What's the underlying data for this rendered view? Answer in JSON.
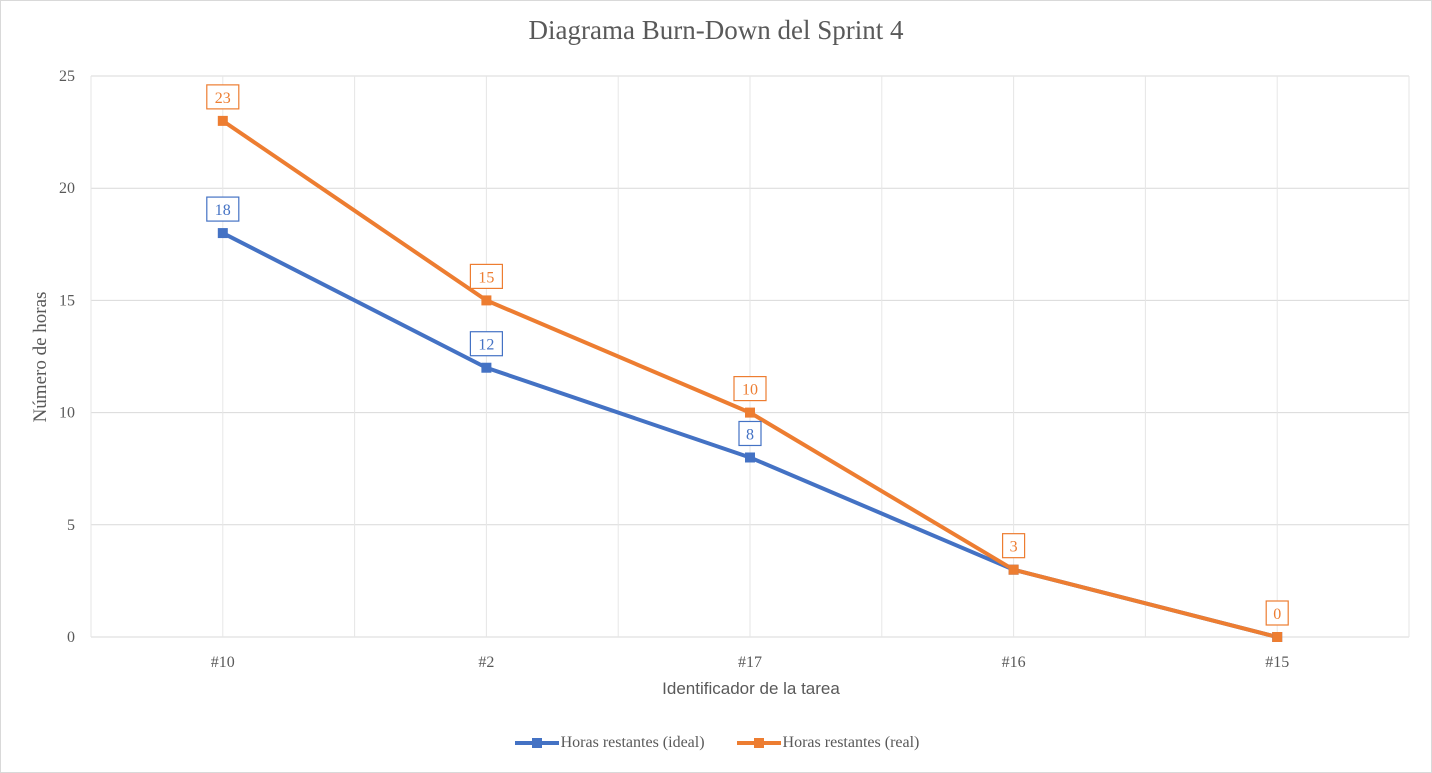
{
  "chart_data": {
    "type": "line",
    "title": "Diagrama Burn-Down del Sprint 4",
    "xlabel": "Identificador de la tarea",
    "ylabel": "Número de horas",
    "categories": [
      "#10",
      "#2",
      "#17",
      "#16",
      "#15"
    ],
    "ylim": [
      0,
      25
    ],
    "yticks": [
      0,
      5,
      10,
      15,
      20,
      25
    ],
    "grid": true,
    "legend": "bottom",
    "series": [
      {
        "name": "Horas restantes (ideal)",
        "values": [
          18,
          12,
          8,
          3,
          0
        ],
        "color": "#4472c4",
        "labels": [
          "18",
          "12",
          "8",
          "",
          ""
        ]
      },
      {
        "name": "Horas restantes (real)",
        "values": [
          23,
          15,
          10,
          3,
          0
        ],
        "color": "#ed7d31",
        "labels": [
          "23",
          "15",
          "10",
          "3",
          "0"
        ]
      }
    ]
  }
}
